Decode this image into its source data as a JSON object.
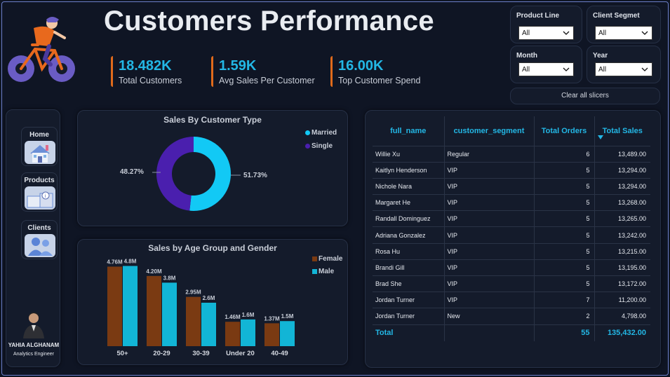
{
  "header": {
    "title": "Customers Performance"
  },
  "kpis": [
    {
      "value": "18.482K",
      "label": "Total Customers"
    },
    {
      "value": "1.59K",
      "label": "Avg Sales Per Customer"
    },
    {
      "value": "16.00K",
      "label": "Top Customer Spend"
    }
  ],
  "slicers": {
    "product_line": {
      "title": "Product Line",
      "value": "All"
    },
    "client_segment": {
      "title": "Client Segmet",
      "value": "All"
    },
    "month": {
      "title": "Month",
      "value": "All"
    },
    "year": {
      "title": "Year",
      "value": "All"
    },
    "clear_label": "Clear all slicers"
  },
  "nav": {
    "home": "Home",
    "products": "Products",
    "clients": "Clients"
  },
  "author": {
    "name": "YAHIA ALGHANAM",
    "role": "Analytics Engineer"
  },
  "donut": {
    "title": "Sales By Customer Type",
    "legend": [
      "Married",
      "Single"
    ],
    "label_married": "51.73%",
    "label_single": "48.27%"
  },
  "bars": {
    "title": "Sales by Age Group and Gender",
    "legend": [
      "Female",
      "Male"
    ]
  },
  "chart_data": [
    {
      "type": "pie",
      "title": "Sales By Customer Type",
      "categories": [
        "Married",
        "Single"
      ],
      "values": [
        51.73,
        48.27
      ],
      "colors": [
        "#12c9f5",
        "#4a1fae"
      ],
      "legend": "top-right"
    },
    {
      "type": "bar",
      "title": "Sales by Age Group and Gender",
      "categories": [
        "50+",
        "20-29",
        "30-39",
        "Under 20",
        "40-49"
      ],
      "series": [
        {
          "name": "Female",
          "values": [
            4.76,
            4.2,
            2.95,
            1.46,
            1.37
          ],
          "labels": [
            "4.76M",
            "4.20M",
            "2.95M",
            "1.46M",
            "1.37M"
          ],
          "color": "#7a3a12"
        },
        {
          "name": "Male",
          "values": [
            4.8,
            3.8,
            2.6,
            1.6,
            1.5
          ],
          "labels": [
            "4.8M",
            "3.8M",
            "2.6M",
            "1.6M",
            "1.5M"
          ],
          "color": "#12b5d6"
        }
      ],
      "ylim": [
        0,
        5.2
      ],
      "legend": "top-right",
      "grid": false
    }
  ],
  "table": {
    "headers": [
      "full_name",
      "customer_segment",
      "Total Orders",
      "Total Sales"
    ],
    "rows": [
      [
        "Willie Xu",
        "Regular",
        "6",
        "13,489.00"
      ],
      [
        "Kaitlyn Henderson",
        "VIP",
        "5",
        "13,294.00"
      ],
      [
        "Nichole Nara",
        "VIP",
        "5",
        "13,294.00"
      ],
      [
        "Margaret He",
        "VIP",
        "5",
        "13,268.00"
      ],
      [
        "Randall Dominguez",
        "VIP",
        "5",
        "13,265.00"
      ],
      [
        "Adriana Gonzalez",
        "VIP",
        "5",
        "13,242.00"
      ],
      [
        "Rosa Hu",
        "VIP",
        "5",
        "13,215.00"
      ],
      [
        "Brandi Gill",
        "VIP",
        "5",
        "13,195.00"
      ],
      [
        "Brad She",
        "VIP",
        "5",
        "13,172.00"
      ],
      [
        "Jordan Turner",
        "VIP",
        "7",
        "11,200.00"
      ],
      [
        "Jordan Turner",
        "New",
        "2",
        "4,798.00"
      ]
    ],
    "total": {
      "label": "Total",
      "orders": "55",
      "sales": "135,432.00"
    }
  },
  "colors": {
    "accent": "#23b7e5",
    "kpi_bar": "#e06a1b",
    "background": "#0f1524"
  }
}
